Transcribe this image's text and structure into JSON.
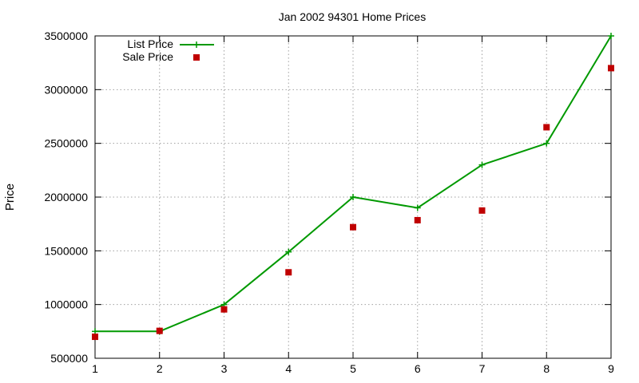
{
  "chart_data": {
    "type": "line",
    "title": "Jan 2002 94301 Home Prices",
    "xlabel": "",
    "ylabel": "Price",
    "xlim": [
      1,
      9
    ],
    "ylim": [
      500000,
      3500000
    ],
    "x_ticks": [
      1,
      2,
      3,
      4,
      5,
      6,
      7,
      8,
      9
    ],
    "y_ticks": [
      500000,
      1000000,
      1500000,
      2000000,
      2500000,
      3000000,
      3500000
    ],
    "grid": true,
    "legend_position": "top-left",
    "series": [
      {
        "name": "List Price",
        "style": "lines with plus markers",
        "color": "#009900",
        "x": [
          1,
          2,
          3,
          4,
          5,
          6,
          7,
          8,
          9
        ],
        "y": [
          750000,
          750000,
          1000000,
          1490000,
          2000000,
          1900000,
          2300000,
          2500000,
          3500000
        ]
      },
      {
        "name": "Sale Price",
        "style": "square points",
        "color": "#c00000",
        "x": [
          1,
          2,
          3,
          4,
          5,
          6,
          7,
          8,
          9
        ],
        "y": [
          700000,
          755000,
          955000,
          1300000,
          1720000,
          1785000,
          1875000,
          2650000,
          3200000
        ]
      }
    ]
  }
}
